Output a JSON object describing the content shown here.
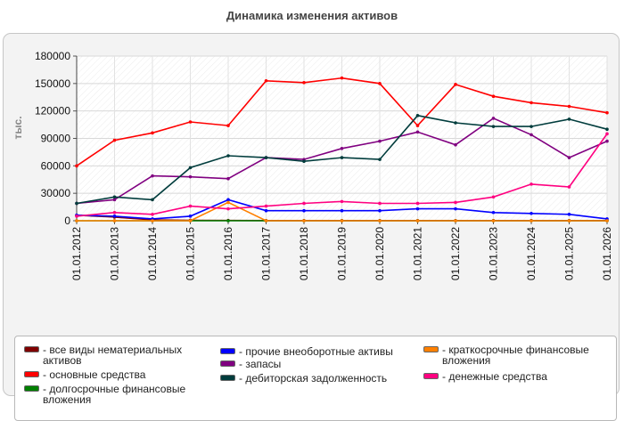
{
  "chart_data": {
    "type": "line",
    "title": "Динамика изменения активов",
    "ylabel": "тыс.",
    "xlabel": "",
    "ylim": [
      0,
      180000
    ],
    "yticks": [
      "0",
      "30000",
      "60000",
      "90000",
      "120000",
      "150000",
      "180000"
    ],
    "categories": [
      "01.01.2012",
      "01.01.2013",
      "01.01.2014",
      "01.01.2015",
      "01.01.2016",
      "01.01.2017",
      "01.01.2018",
      "01.01.2019",
      "01.01.2020",
      "01.01.2021",
      "01.01.2022",
      "01.01.2023",
      "01.01.2024",
      "01.01.2025",
      "01.01.2026"
    ],
    "grid": true,
    "legend_position": "bottom",
    "series": [
      {
        "name": "все виды нематериальных активов",
        "color": "#800000",
        "values": [
          6000,
          4000,
          1000,
          500,
          300,
          200,
          200,
          200,
          200,
          200,
          200,
          200,
          200,
          200,
          200
        ]
      },
      {
        "name": "основные средства",
        "color": "#ff0000",
        "values": [
          60000,
          88000,
          96000,
          108000,
          104000,
          153000,
          151000,
          156000,
          150000,
          104000,
          149000,
          136000,
          129000,
          125000,
          118000
        ]
      },
      {
        "name": "долгосрочные финансовые вложения",
        "color": "#008000",
        "values": [
          0,
          0,
          0,
          0,
          0,
          0,
          0,
          0,
          0,
          0,
          0,
          0,
          0,
          0,
          0
        ]
      },
      {
        "name": "прочие внеоборотные активы",
        "color": "#0000ff",
        "values": [
          6000,
          5000,
          2000,
          5000,
          23000,
          11000,
          11000,
          11000,
          11000,
          13000,
          13000,
          9000,
          8000,
          7000,
          2000
        ]
      },
      {
        "name": "запасы",
        "color": "#800080",
        "values": [
          19000,
          23000,
          49000,
          48000,
          46000,
          69000,
          67000,
          79000,
          87000,
          97000,
          83000,
          112000,
          94000,
          69000,
          87000
        ]
      },
      {
        "name": "дебиторская задолженность",
        "color": "#003c3c",
        "values": [
          19000,
          26000,
          23000,
          58000,
          71000,
          69000,
          65000,
          69000,
          67000,
          115000,
          107000,
          103000,
          103000,
          111000,
          100000
        ]
      },
      {
        "name": "краткосрочные финансовые вложения",
        "color": "#ff8000",
        "values": [
          0,
          0,
          0,
          0,
          20000,
          0,
          0,
          0,
          0,
          0,
          0,
          0,
          0,
          0,
          0
        ]
      },
      {
        "name": "денежные средства",
        "color": "#ff0080",
        "values": [
          5000,
          9000,
          7000,
          16000,
          13000,
          16000,
          19000,
          21000,
          19000,
          19000,
          20000,
          26000,
          40000,
          37000,
          95000
        ]
      }
    ]
  },
  "legend": {
    "items": [
      {
        "series": 0,
        "label": "- все виды нематериальных активов"
      },
      {
        "series": 1,
        "label": "- основные средства"
      },
      {
        "series": 2,
        "label": "- долгосрочные финансовые вложения"
      },
      {
        "series": 3,
        "label": "- прочие внеоборотные активы"
      },
      {
        "series": 4,
        "label": "- запасы"
      },
      {
        "series": 5,
        "label": "- дебиторская задолженность"
      },
      {
        "series": 6,
        "label": "- краткосрочные финансовые вложения"
      },
      {
        "series": 7,
        "label": "- денежные средства"
      }
    ]
  }
}
